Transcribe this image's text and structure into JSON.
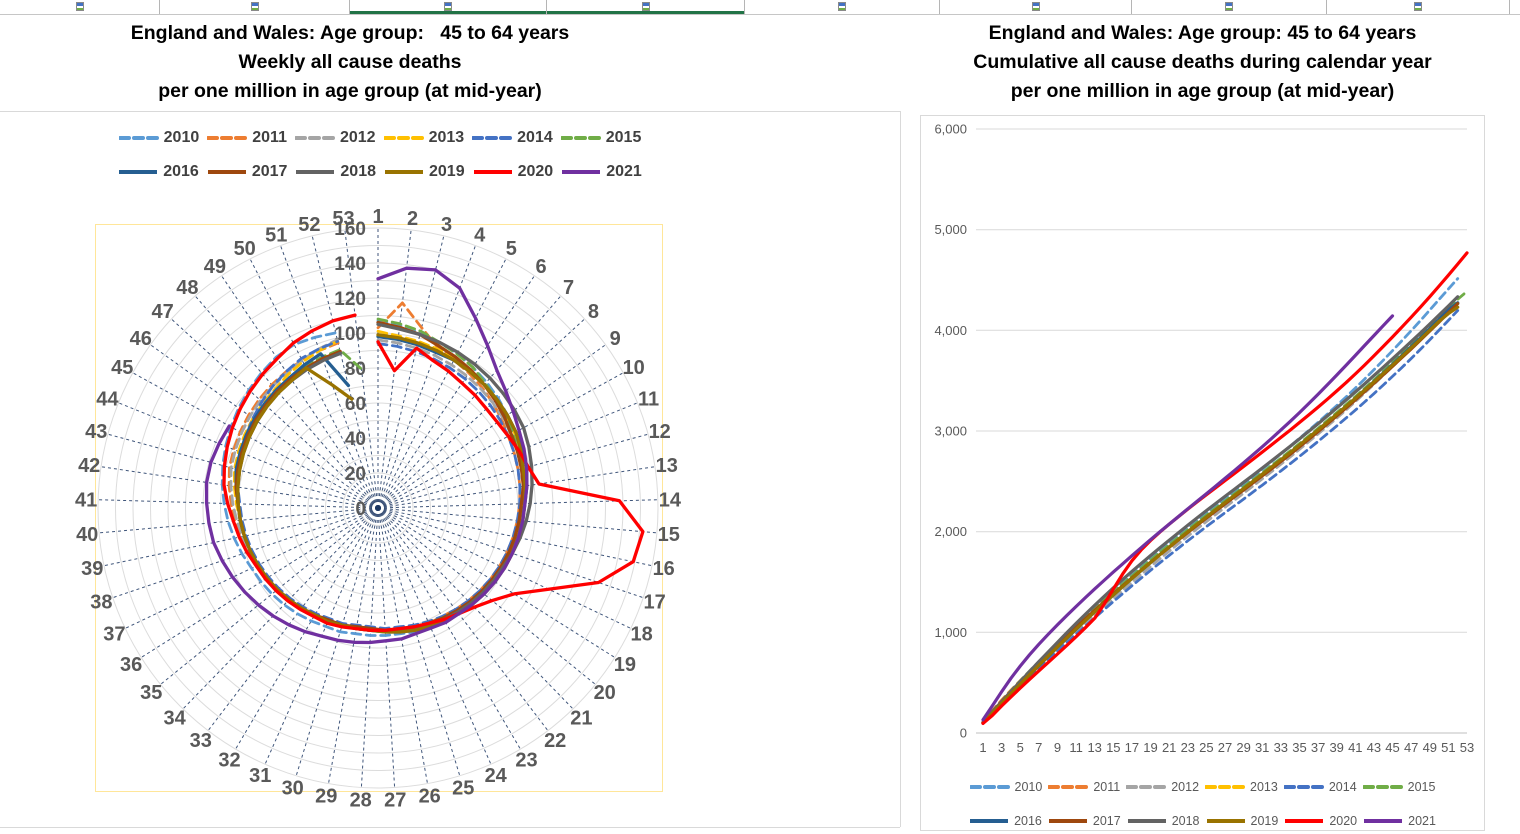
{
  "tab_strip": {
    "tabs": [
      {
        "active": false
      },
      {
        "active": false
      },
      {
        "active": true
      },
      {
        "active": true
      },
      {
        "active": false
      },
      {
        "active": false
      },
      {
        "active": false
      },
      {
        "active": false
      }
    ]
  },
  "left_chart": {
    "title_lines": [
      "England and Wales: Age group:   45 to 64 years",
      "Weekly all cause deaths",
      "per one million in age group (at mid-year)"
    ]
  },
  "right_chart": {
    "title_lines": [
      "England and Wales: Age group: 45 to 64 years",
      "Cumulative all cause deaths during calendar year",
      "per one million in age group (at mid-year)"
    ]
  },
  "chart_data": [
    {
      "type": "radar",
      "title": "England and Wales: Age group: 45 to 64 years — Weekly all cause deaths per one million in age group (at mid-year)",
      "categories": [
        "1",
        "2",
        "3",
        "4",
        "5",
        "6",
        "7",
        "8",
        "9",
        "10",
        "11",
        "12",
        "13",
        "14",
        "15",
        "16",
        "17",
        "18",
        "19",
        "20",
        "21",
        "22",
        "23",
        "24",
        "25",
        "26",
        "27",
        "28",
        "29",
        "30",
        "31",
        "32",
        "33",
        "34",
        "35",
        "36",
        "37",
        "38",
        "39",
        "40",
        "41",
        "42",
        "43",
        "44",
        "45",
        "46",
        "47",
        "48",
        "49",
        "50",
        "51",
        "52",
        "53"
      ],
      "radial_axis": {
        "min": 0,
        "max": 160,
        "tick_step": 20,
        "tick_labels": [
          "0",
          "20",
          "40",
          "60",
          "80",
          "100",
          "120",
          "140",
          "160"
        ]
      },
      "gridline_color": "#dcdcdc",
      "spoke_color": "#1F3864",
      "plot_border_color": "#ffe699",
      "legend_position": "top",
      "series": [
        {
          "name": "2010",
          "color": "#5B9BD5",
          "dash": true,
          "values": [
            107,
            105,
            103,
            101,
            99,
            97,
            95,
            93,
            91,
            89,
            87,
            86,
            85,
            84,
            83,
            82,
            81,
            80,
            79,
            78,
            77,
            76,
            75,
            74,
            74,
            73,
            73,
            73,
            73,
            74,
            74,
            75,
            76,
            77,
            78,
            79,
            80,
            82,
            84,
            86,
            88,
            90,
            92,
            94,
            96,
            98,
            100,
            102,
            104,
            105,
            104,
            103
          ]
        },
        {
          "name": "2011",
          "color": "#ED7D31",
          "dash": true,
          "values": [
            103,
            118,
            106,
            98,
            95,
            93,
            91,
            89,
            87,
            85,
            84,
            83,
            82,
            81,
            80,
            79,
            78,
            77,
            76,
            75,
            74,
            73,
            72,
            72,
            71,
            71,
            70,
            70,
            70,
            71,
            71,
            72,
            73,
            74,
            75,
            76,
            77,
            78,
            80,
            82,
            84,
            86,
            88,
            89,
            90,
            91,
            92,
            93,
            94,
            95,
            96,
            97
          ]
        },
        {
          "name": "2012",
          "color": "#A5A5A5",
          "dash": true,
          "values": [
            96,
            95,
            94,
            93,
            92,
            91,
            90,
            89,
            88,
            87,
            86,
            85,
            84,
            83,
            82,
            81,
            80,
            79,
            78,
            77,
            76,
            75,
            74,
            73,
            72,
            71,
            71,
            70,
            70,
            71,
            71,
            72,
            73,
            74,
            75,
            76,
            77,
            78,
            79,
            81,
            83,
            85,
            87,
            88,
            89,
            90,
            91,
            92,
            93,
            95,
            97,
            99
          ]
        },
        {
          "name": "2013",
          "color": "#FFC000",
          "dash": true,
          "values": [
            101,
            99,
            98,
            97,
            96,
            95,
            93,
            91,
            90,
            89,
            88,
            86,
            85,
            83,
            82,
            81,
            80,
            79,
            78,
            77,
            76,
            75,
            74,
            73,
            72,
            71,
            70,
            70,
            70,
            70,
            71,
            71,
            72,
            73,
            74,
            75,
            76,
            77,
            78,
            79,
            81,
            83,
            85,
            86,
            87,
            88,
            89,
            90,
            92,
            94,
            96,
            98
          ]
        },
        {
          "name": "2014",
          "color": "#4472C4",
          "dash": true,
          "values": [
            94,
            93,
            92,
            91,
            90,
            89,
            88,
            87,
            86,
            85,
            84,
            83,
            82,
            81,
            80,
            79,
            78,
            77,
            76,
            75,
            74,
            73,
            72,
            71,
            70,
            69,
            69,
            68,
            68,
            69,
            69,
            70,
            71,
            72,
            73,
            74,
            75,
            76,
            77,
            78,
            79,
            81,
            83,
            85,
            86,
            88,
            90,
            92,
            94,
            96,
            97,
            98
          ]
        },
        {
          "name": "2015",
          "color": "#70AD47",
          "dash": true,
          "values": [
            108,
            106,
            104,
            101,
            99,
            97,
            94,
            92,
            90,
            88,
            86,
            85,
            84,
            83,
            82,
            81,
            80,
            79,
            78,
            77,
            76,
            75,
            74,
            73,
            72,
            71,
            70,
            70,
            70,
            70,
            71,
            71,
            72,
            73,
            74,
            75,
            76,
            77,
            78,
            79,
            80,
            82,
            84,
            85,
            86,
            87,
            88,
            89,
            90,
            91,
            92,
            93,
            80
          ]
        },
        {
          "name": "2016",
          "color": "#255E91",
          "dash": false,
          "values": [
            98,
            97,
            96,
            95,
            95,
            94,
            93,
            92,
            91,
            90,
            89,
            88,
            86,
            84,
            83,
            82,
            81,
            80,
            79,
            78,
            77,
            76,
            75,
            74,
            73,
            72,
            71,
            70,
            70,
            70,
            71,
            71,
            72,
            73,
            74,
            75,
            76,
            77,
            78,
            79,
            80,
            82,
            84,
            85,
            86,
            87,
            88,
            89,
            90,
            92,
            94,
            72
          ]
        },
        {
          "name": "2017",
          "color": "#9E480E",
          "dash": false,
          "values": [
            106,
            104,
            102,
            99,
            97,
            95,
            93,
            91,
            89,
            87,
            86,
            85,
            84,
            82,
            81,
            80,
            79,
            78,
            77,
            76,
            75,
            74,
            73,
            72,
            71,
            70,
            70,
            69,
            69,
            70,
            70,
            71,
            72,
            73,
            74,
            75,
            76,
            77,
            78,
            79,
            80,
            82,
            83,
            84,
            85,
            86,
            87,
            88,
            89,
            90,
            91,
            92
          ]
        },
        {
          "name": "2018",
          "color": "#636363",
          "dash": false,
          "values": [
            105,
            103,
            102,
            101,
            100,
            99,
            98,
            97,
            96,
            95,
            93,
            91,
            89,
            87,
            85,
            83,
            81,
            79,
            78,
            77,
            76,
            75,
            74,
            73,
            72,
            71,
            70,
            70,
            70,
            70,
            71,
            72,
            72,
            73,
            74,
            75,
            76,
            77,
            78,
            79,
            80,
            81,
            82,
            83,
            84,
            85,
            86,
            87,
            88,
            89,
            90,
            91
          ]
        },
        {
          "name": "2019",
          "color": "#997300",
          "dash": false,
          "values": [
            99,
            98,
            97,
            96,
            95,
            94,
            93,
            92,
            91,
            90,
            88,
            86,
            85,
            84,
            83,
            82,
            81,
            80,
            79,
            78,
            77,
            76,
            75,
            74,
            73,
            72,
            71,
            70,
            70,
            70,
            71,
            71,
            72,
            73,
            74,
            75,
            76,
            77,
            78,
            79,
            80,
            81,
            82,
            83,
            84,
            85,
            86,
            87,
            88,
            90,
            75,
            64
          ]
        },
        {
          "name": "2020",
          "color": "#FF0000",
          "dash": false,
          "values": [
            95,
            79,
            94,
            90,
            88,
            86,
            85,
            84,
            84,
            85,
            87,
            89,
            93,
            138,
            152,
            149,
            133,
            108,
            92,
            84,
            79,
            76,
            74,
            72,
            71,
            70,
            70,
            70,
            70,
            71,
            72,
            72,
            73,
            74,
            75,
            76,
            77,
            79,
            81,
            83,
            86,
            89,
            91,
            93,
            95,
            97,
            99,
            101,
            103,
            106,
            108,
            110,
            111
          ]
        },
        {
          "name": "2021",
          "color": "#7030A0",
          "dash": false,
          "values": [
            131,
            138,
            140,
            134,
            122,
            112,
            104,
            99,
            95,
            92,
            90,
            88,
            86,
            84,
            83,
            82,
            81,
            80,
            79,
            78,
            77,
            76,
            76,
            75,
            75,
            76,
            76,
            77,
            78,
            79,
            80,
            82,
            84,
            86,
            88,
            90,
            92,
            94,
            96,
            97,
            98,
            99,
            99,
            98,
            97
          ]
        }
      ]
    },
    {
      "type": "line",
      "title": "England and Wales: Age group: 45 to 64 years — Cumulative all cause deaths during calendar year per one million in age group (at mid-year)",
      "values_source": "cumulative_sums_of_radar_weekly_series",
      "x_tick_labels": [
        "1",
        "3",
        "5",
        "7",
        "9",
        "11",
        "13",
        "15",
        "17",
        "19",
        "21",
        "23",
        "25",
        "27",
        "29",
        "31",
        "33",
        "35",
        "37",
        "39",
        "41",
        "43",
        "45",
        "47",
        "49",
        "51",
        "53"
      ],
      "ylim": [
        0,
        6000
      ],
      "y_tick_labels": [
        "0",
        "1,000",
        "2,000",
        "3,000",
        "4,000",
        "5,000",
        "6,000"
      ],
      "grid": true,
      "legend_position": "bottom",
      "approx_final_cumulative": {
        "2010": 4500,
        "2011": 4330,
        "2012": 4300,
        "2013": 4300,
        "2014": 4200,
        "2015": 4280,
        "2016": 4270,
        "2017": 4270,
        "2018": 4330,
        "2019": 4230,
        "2020": 4770,
        "2021_week45": 4140
      }
    }
  ]
}
